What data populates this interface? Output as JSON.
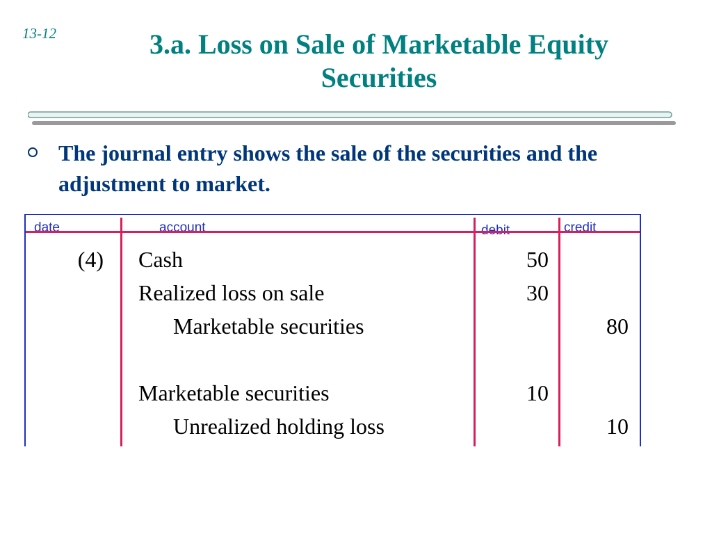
{
  "slide_number": "13-12",
  "title": "3.a. Loss on Sale of Marketable Equity Securities",
  "bullet": "The journal entry shows the sale of the securities and the adjustment to market.",
  "ledger": {
    "headers": {
      "date": "date",
      "account": "account",
      "debit": "debit",
      "credit": "credit"
    },
    "rows": [
      {
        "date": "(4)",
        "account": "Cash",
        "debit": "50",
        "credit": ""
      },
      {
        "date": "",
        "account": "Realized loss on sale",
        "debit": "30",
        "credit": ""
      },
      {
        "date": "",
        "account": "Marketable securities",
        "debit": "",
        "credit": "80"
      },
      {
        "date": "",
        "account": "Marketable securities",
        "debit": "10",
        "credit": ""
      },
      {
        "date": "",
        "account": "Unrealized holding loss",
        "debit": "",
        "credit": "10"
      }
    ]
  },
  "colors": {
    "title": "#008080",
    "bullet": "#00367A",
    "ledger_header": "#1E2FBF",
    "ledger_rule": "#D81E5B"
  }
}
